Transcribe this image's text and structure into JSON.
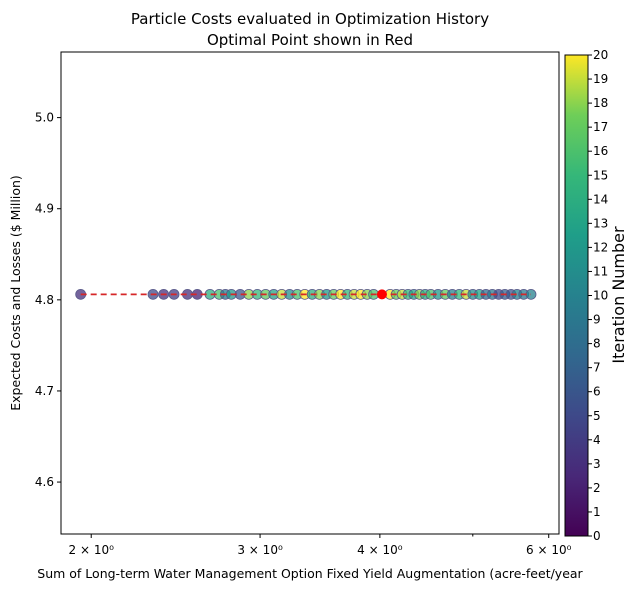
{
  "chart_data": {
    "type": "scatter",
    "title": "Particle Costs evaluated in Optimization History",
    "subtitle": "Optimal Point shown in Red",
    "xlabel": "Sum of Long-term Water Management Option Fixed Yield Augmentation (acre-feet/year",
    "ylabel": "Expected Costs and Losses ($ Million)",
    "xscale": "log",
    "xlim": [
      1.86,
      6.15
    ],
    "ylim": [
      4.543,
      5.072
    ],
    "x_ticks": [
      {
        "value": 2,
        "label": "2 × 10⁰"
      },
      {
        "value": 3,
        "label": "3 × 10⁰"
      },
      {
        "value": 4,
        "label": "4 × 10⁰"
      },
      {
        "value": 6,
        "label": "6 × 10⁰"
      }
    ],
    "x_minor_ticks": [
      5
    ],
    "y_ticks": [
      {
        "value": 4.6,
        "label": "4.6"
      },
      {
        "value": 4.7,
        "label": "4.7"
      },
      {
        "value": 4.8,
        "label": "4.8"
      },
      {
        "value": 4.9,
        "label": "4.9"
      },
      {
        "value": 5.0,
        "label": "5.0"
      }
    ],
    "grid": false,
    "colorbar": {
      "label": "Iteration Number",
      "colormap": "viridis",
      "range": [
        0,
        20
      ],
      "tick_labels": [
        "0",
        "1",
        "2",
        "3",
        "4",
        "5",
        "6",
        "7",
        "8",
        "9",
        "10",
        "11",
        "12",
        "13",
        "14",
        "15",
        "16",
        "17",
        "18",
        "19",
        "20"
      ]
    },
    "points": [
      {
        "x": 1.95,
        "y": 4.806,
        "iteration": 3
      },
      {
        "x": 2.32,
        "y": 4.806,
        "iteration": 5
      },
      {
        "x": 2.38,
        "y": 4.806,
        "iteration": 3
      },
      {
        "x": 2.44,
        "y": 4.806,
        "iteration": 4
      },
      {
        "x": 2.52,
        "y": 4.806,
        "iteration": 3
      },
      {
        "x": 2.58,
        "y": 4.806,
        "iteration": 2
      },
      {
        "x": 2.66,
        "y": 4.806,
        "iteration": 14
      },
      {
        "x": 2.72,
        "y": 4.806,
        "iteration": 16
      },
      {
        "x": 2.76,
        "y": 4.806,
        "iteration": 9
      },
      {
        "x": 2.8,
        "y": 4.806,
        "iteration": 12
      },
      {
        "x": 2.86,
        "y": 4.806,
        "iteration": 6
      },
      {
        "x": 2.92,
        "y": 4.806,
        "iteration": 18
      },
      {
        "x": 2.98,
        "y": 4.806,
        "iteration": 15
      },
      {
        "x": 3.04,
        "y": 4.806,
        "iteration": 17
      },
      {
        "x": 3.1,
        "y": 4.806,
        "iteration": 13
      },
      {
        "x": 3.16,
        "y": 4.806,
        "iteration": 19
      },
      {
        "x": 3.22,
        "y": 4.806,
        "iteration": 11
      },
      {
        "x": 3.28,
        "y": 4.806,
        "iteration": 16
      },
      {
        "x": 3.34,
        "y": 4.806,
        "iteration": 20
      },
      {
        "x": 3.4,
        "y": 4.806,
        "iteration": 14
      },
      {
        "x": 3.46,
        "y": 4.806,
        "iteration": 18
      },
      {
        "x": 3.52,
        "y": 4.806,
        "iteration": 12
      },
      {
        "x": 3.58,
        "y": 4.806,
        "iteration": 17
      },
      {
        "x": 3.64,
        "y": 4.806,
        "iteration": 20
      },
      {
        "x": 3.7,
        "y": 4.806,
        "iteration": 15
      },
      {
        "x": 3.76,
        "y": 4.806,
        "iteration": 19
      },
      {
        "x": 3.82,
        "y": 4.806,
        "iteration": 20
      },
      {
        "x": 3.88,
        "y": 4.806,
        "iteration": 18
      },
      {
        "x": 3.94,
        "y": 4.806,
        "iteration": 16
      },
      {
        "x": 4.1,
        "y": 4.806,
        "iteration": 20
      },
      {
        "x": 4.16,
        "y": 4.806,
        "iteration": 17
      },
      {
        "x": 4.22,
        "y": 4.806,
        "iteration": 19
      },
      {
        "x": 4.28,
        "y": 4.806,
        "iteration": 15
      },
      {
        "x": 4.34,
        "y": 4.806,
        "iteration": 13
      },
      {
        "x": 4.4,
        "y": 4.806,
        "iteration": 18
      },
      {
        "x": 4.46,
        "y": 4.806,
        "iteration": 14
      },
      {
        "x": 4.52,
        "y": 4.806,
        "iteration": 16
      },
      {
        "x": 4.6,
        "y": 4.806,
        "iteration": 12
      },
      {
        "x": 4.68,
        "y": 4.806,
        "iteration": 17
      },
      {
        "x": 4.76,
        "y": 4.806,
        "iteration": 10
      },
      {
        "x": 4.84,
        "y": 4.806,
        "iteration": 15
      },
      {
        "x": 4.92,
        "y": 4.806,
        "iteration": 19
      },
      {
        "x": 5.0,
        "y": 4.806,
        "iteration": 11
      },
      {
        "x": 5.08,
        "y": 4.806,
        "iteration": 13
      },
      {
        "x": 5.16,
        "y": 4.806,
        "iteration": 8
      },
      {
        "x": 5.24,
        "y": 4.806,
        "iteration": 9
      },
      {
        "x": 5.32,
        "y": 4.806,
        "iteration": 5
      },
      {
        "x": 5.4,
        "y": 4.806,
        "iteration": 7
      },
      {
        "x": 5.48,
        "y": 4.806,
        "iteration": 6
      },
      {
        "x": 5.56,
        "y": 4.806,
        "iteration": 10
      },
      {
        "x": 5.65,
        "y": 4.806,
        "iteration": 9
      },
      {
        "x": 5.75,
        "y": 4.806,
        "iteration": 10
      }
    ],
    "optimal_point": {
      "x": 4.02,
      "y": 4.806,
      "color": "#ff0000"
    },
    "trend_line": {
      "x": [
        1.95,
        5.75
      ],
      "y": [
        4.806,
        4.806
      ],
      "color": "#d62728",
      "style": "dashed"
    }
  }
}
